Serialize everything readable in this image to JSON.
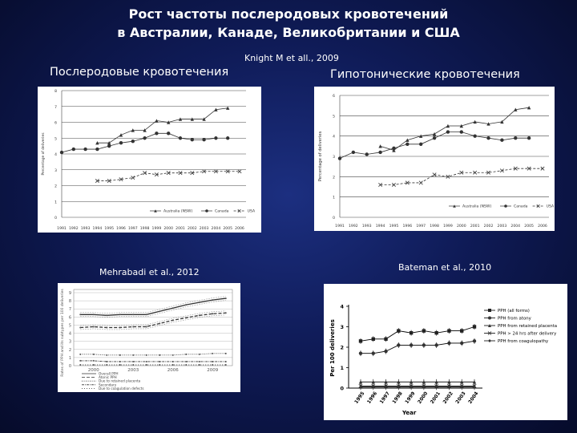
{
  "slide": {
    "title_line1": "Рост частоты послеродовых кровотечений",
    "title_line2": "в Австралии, Канаде, Великобритании и США",
    "citation_top": "Knight M et all., 2009",
    "heading_left": "Послеродовые кровотечения",
    "heading_right": "Гипотонические кровотечения",
    "citation_bottom_left": "Mehrabadi et al., 2012",
    "citation_bottom_right": "Bateman et al., 2010"
  },
  "chart_data": [
    {
      "type": "line",
      "ylabel": "Percentage of deliveries",
      "ylim": [
        0,
        8
      ],
      "yticks": [
        0,
        1,
        2,
        3,
        4,
        5,
        6,
        7,
        8
      ],
      "categories": [
        "1991",
        "1992",
        "1993",
        "1994",
        "1995",
        "1996",
        "1997",
        "1998",
        "1999",
        "2000",
        "2001",
        "2002",
        "2003",
        "2004",
        "2005",
        "2006"
      ],
      "series": [
        {
          "name": "Australia (NSW)",
          "marker": "tri",
          "values": [
            null,
            null,
            null,
            4.7,
            4.7,
            5.2,
            5.5,
            5.5,
            6.1,
            6.0,
            6.2,
            6.2,
            6.2,
            6.8,
            6.9,
            null
          ]
        },
        {
          "name": "Canada",
          "marker": "circle",
          "values": [
            4.1,
            4.3,
            4.3,
            4.3,
            4.5,
            4.7,
            4.8,
            5.0,
            5.3,
            5.3,
            5.0,
            4.9,
            4.9,
            5.0,
            5.0,
            null
          ]
        },
        {
          "name": "USA",
          "marker": "x",
          "values": [
            null,
            null,
            null,
            2.3,
            2.3,
            2.4,
            2.5,
            2.8,
            2.7,
            2.8,
            2.8,
            2.8,
            2.9,
            2.9,
            2.9,
            2.9
          ]
        }
      ],
      "grid": true,
      "legend": "bottom"
    },
    {
      "type": "line",
      "ylabel": "Percentage of deliveries",
      "ylim": [
        0,
        6
      ],
      "yticks": [
        0,
        1,
        2,
        3,
        4,
        5,
        6
      ],
      "categories": [
        "1991",
        "1992",
        "1993",
        "1994",
        "1995",
        "1996",
        "1997",
        "1998",
        "1999",
        "2000",
        "2001",
        "2002",
        "2003",
        "2004",
        "2005",
        "2006"
      ],
      "series": [
        {
          "name": "Australia (NSW)",
          "marker": "tri",
          "values": [
            null,
            null,
            null,
            3.5,
            3.3,
            3.8,
            4.0,
            4.1,
            4.5,
            4.5,
            4.7,
            4.6,
            4.7,
            5.3,
            5.4,
            null
          ]
        },
        {
          "name": "Canada",
          "marker": "circle",
          "values": [
            2.9,
            3.2,
            3.1,
            3.2,
            3.4,
            3.6,
            3.6,
            3.9,
            4.2,
            4.2,
            4.0,
            3.9,
            3.8,
            3.9,
            3.9,
            null
          ]
        },
        {
          "name": "USA",
          "marker": "x",
          "values": [
            null,
            null,
            null,
            1.6,
            1.6,
            1.7,
            1.7,
            2.1,
            2.0,
            2.2,
            2.2,
            2.2,
            2.3,
            2.4,
            2.4,
            2.4
          ]
        }
      ],
      "grid": true,
      "legend": "bottom"
    },
    {
      "type": "line",
      "ylabel": "Rates of PPH and its subtypes per 100 deliveries",
      "ylim": [
        0,
        9
      ],
      "yticks": [
        0,
        1,
        2,
        3,
        4,
        5,
        6,
        7,
        8,
        9
      ],
      "x": [
        1999,
        2000,
        2001,
        2002,
        2003,
        2004,
        2005,
        2006,
        2007,
        2008,
        2009,
        2010
      ],
      "xticks": [
        "2000",
        "2003",
        "2006",
        "2009"
      ],
      "series": [
        {
          "name": "Overall PPH",
          "values": [
            6.3,
            6.3,
            6.2,
            6.3,
            6.3,
            6.3,
            6.7,
            7.1,
            7.5,
            7.8,
            8.1,
            8.3
          ]
        },
        {
          "name": "Atonic PPH",
          "values": [
            4.7,
            4.8,
            4.7,
            4.7,
            4.8,
            4.8,
            5.2,
            5.6,
            5.9,
            6.2,
            6.4,
            6.5
          ]
        },
        {
          "name": "Due to retained placenta",
          "values": [
            1.4,
            1.4,
            1.3,
            1.3,
            1.3,
            1.3,
            1.3,
            1.3,
            1.4,
            1.4,
            1.5,
            1.5
          ]
        },
        {
          "name": "Secondary",
          "values": [
            0.6,
            0.6,
            0.5,
            0.5,
            0.5,
            0.5,
            0.5,
            0.5,
            0.5,
            0.5,
            0.5,
            0.5
          ]
        },
        {
          "name": "Due to coagulation defects",
          "values": [
            0.1,
            0.1,
            0.1,
            0.1,
            0.1,
            0.1,
            0.1,
            0.1,
            0.1,
            0.1,
            0.1,
            0.1
          ]
        }
      ],
      "grid": true,
      "legend": "bottom-left"
    },
    {
      "type": "line",
      "ylabel": "Per 100 deliveries",
      "xlabel": "Year",
      "ylim": [
        0,
        4
      ],
      "yticks": [
        0,
        1,
        2,
        3,
        4
      ],
      "categories": [
        "1995",
        "1996",
        "1997",
        "1998",
        "1999",
        "2000",
        "2001",
        "2002",
        "2003",
        "2004"
      ],
      "series": [
        {
          "name": "PPH (all forms)",
          "marker": "square",
          "values": [
            2.3,
            2.4,
            2.4,
            2.8,
            2.7,
            2.8,
            2.7,
            2.8,
            2.8,
            3.0
          ]
        },
        {
          "name": "PPH from atony",
          "marker": "circle",
          "values": [
            1.7,
            1.7,
            1.8,
            2.1,
            2.1,
            2.1,
            2.1,
            2.2,
            2.2,
            2.3
          ]
        },
        {
          "name": "PPH from retained placenta",
          "marker": "tri",
          "values": [
            0.3,
            0.3,
            0.3,
            0.3,
            0.3,
            0.3,
            0.3,
            0.3,
            0.3,
            0.3
          ]
        },
        {
          "name": "PPH > 24 hrs after delivery",
          "marker": "x",
          "values": [
            0.1,
            0.1,
            0.1,
            0.1,
            0.1,
            0.1,
            0.1,
            0.1,
            0.1,
            0.1
          ]
        },
        {
          "name": "PPH from coagulopathy",
          "marker": "diamond",
          "values": [
            0.05,
            0.05,
            0.05,
            0.05,
            0.05,
            0.05,
            0.05,
            0.05,
            0.05,
            0.05
          ]
        }
      ],
      "grid": false,
      "legend": "top-right"
    }
  ]
}
